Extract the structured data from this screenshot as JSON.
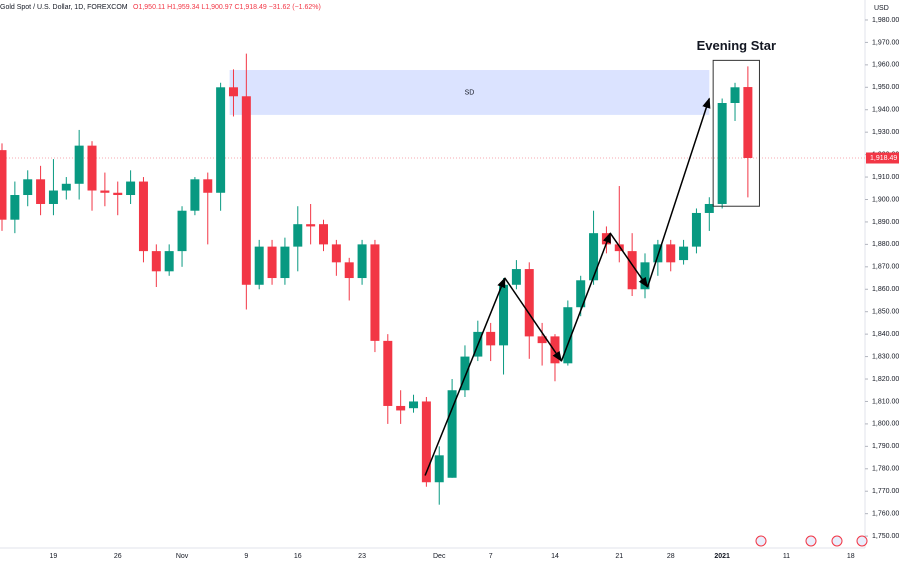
{
  "chart_data": {
    "type": "candlestick",
    "legend_text": "Gold Spot / U.S. Dollar, 1D, FOREXCOM",
    "ohlc_text": "O1,950.11 H1,959.34 L1,900.97 C1,918.49 −31.62 (−1.62%)",
    "currency": "USD",
    "price_label": "1,918.49",
    "up_color": "#089981",
    "down_color": "#f23645",
    "categories": [
      null,
      null,
      null,
      null,
      "19",
      null,
      null,
      null,
      null,
      "26",
      null,
      null,
      null,
      null,
      "Nov",
      null,
      null,
      null,
      null,
      "9",
      null,
      null,
      null,
      "16",
      null,
      null,
      null,
      null,
      "23",
      null,
      null,
      null,
      null,
      null,
      "Dec",
      null,
      null,
      null,
      "7",
      null,
      null,
      null,
      null,
      "14",
      null,
      null,
      null,
      null,
      "21",
      null,
      null,
      null,
      "28",
      null,
      null,
      null,
      "2021",
      null,
      null,
      null,
      null,
      "11",
      null,
      null,
      null,
      null,
      "18"
    ],
    "open": [
      1922,
      1891,
      1902,
      1909,
      1898,
      1904,
      1907,
      1924,
      1904,
      1903,
      1902,
      1908,
      1877,
      1868,
      1877,
      1895,
      1909,
      1903,
      1950,
      1946,
      1862,
      1879,
      1865,
      1879,
      1889,
      1889,
      1880,
      1872,
      1865,
      1880,
      1837,
      1808,
      1807,
      1810,
      1774,
      1776,
      1815,
      1830,
      1841,
      1835,
      1862,
      1869,
      1839,
      1839,
      1827,
      1852,
      1864,
      1885,
      1880,
      1877,
      1860,
      1872,
      1880,
      1873,
      1879,
      1894,
      1898,
      1943,
      1950.11,
      null,
      null,
      null,
      null,
      null,
      null,
      null,
      null
    ],
    "high": [
      1925,
      1908,
      1913,
      1915,
      1918,
      1910,
      1931,
      1926,
      1912,
      1908,
      1913,
      1910,
      1880,
      1880,
      1897,
      1910,
      1912,
      1952,
      1958,
      1965,
      1882,
      1882,
      1883,
      1897,
      1898,
      1891,
      1882,
      1874,
      1882,
      1882,
      1840,
      1815,
      1813,
      1812,
      1790,
      1820,
      1835,
      1846,
      1845,
      1865,
      1873,
      1872,
      1845,
      1840,
      1855,
      1866,
      1895,
      1888,
      1906,
      1885,
      1876,
      1882,
      1882,
      1882,
      1896,
      1901,
      1945,
      1952,
      1959.34,
      null,
      null,
      null,
      null,
      null,
      null,
      null,
      null
    ],
    "low": [
      1886,
      1885,
      1897,
      1893,
      1893,
      1900,
      1900,
      1895,
      1897,
      1893,
      1898,
      1872,
      1861,
      1866,
      1870,
      1893,
      1880,
      1895,
      1937,
      1851,
      1860,
      1862,
      1862,
      1868,
      1880,
      1877,
      1866,
      1855,
      1862,
      1832,
      1800,
      1800,
      1805,
      1772,
      1764,
      1776,
      1812,
      1828,
      1828,
      1822,
      1860,
      1829,
      1826,
      1819,
      1826,
      1848,
      1862,
      1876,
      1872,
      1857,
      1856,
      1866,
      1868,
      1871,
      1876,
      1886,
      1896,
      1935,
      1900.97,
      null,
      null,
      null,
      null,
      null,
      null,
      null,
      null
    ],
    "close": [
      1891,
      1902,
      1909,
      1898,
      1904,
      1907,
      1924,
      1904,
      1903,
      1902,
      1908,
      1877,
      1868,
      1877,
      1895,
      1909,
      1903,
      1950,
      1946,
      1862,
      1879,
      1865,
      1879,
      1889,
      1888,
      1880,
      1872,
      1865,
      1880,
      1837,
      1808,
      1806,
      1810,
      1774,
      1786,
      1815,
      1830,
      1841,
      1835,
      1862,
      1869,
      1839,
      1836,
      1827,
      1852,
      1864,
      1885,
      1880,
      1877,
      1860,
      1872,
      1880,
      1872,
      1879,
      1894,
      1898,
      1943,
      1950,
      1918.49,
      null,
      null,
      null,
      null,
      null,
      null,
      null,
      null
    ],
    "ylim": [
      1744.7,
      1988.9
    ],
    "yticks": [
      {
        "value": 1750,
        "label": "1,750.00"
      },
      {
        "value": 1760,
        "label": "1,760.00"
      },
      {
        "value": 1770,
        "label": "1,770.00"
      },
      {
        "value": 1780,
        "label": "1,780.00"
      },
      {
        "value": 1790,
        "label": "1,790.00"
      },
      {
        "value": 1800,
        "label": "1,800.00"
      },
      {
        "value": 1810,
        "label": "1,810.00"
      },
      {
        "value": 1820,
        "label": "1,820.00"
      },
      {
        "value": 1830,
        "label": "1,830.00"
      },
      {
        "value": 1840,
        "label": "1,840.00"
      },
      {
        "value": 1850,
        "label": "1,850.00"
      },
      {
        "value": 1860,
        "label": "1,860.00"
      },
      {
        "value": 1870,
        "label": "1,870.00"
      },
      {
        "value": 1880,
        "label": "1,880.00"
      },
      {
        "value": 1890,
        "label": "1,890.00"
      },
      {
        "value": 1900,
        "label": "1,900.00"
      },
      {
        "value": 1910,
        "label": "1,910.00"
      },
      {
        "value": 1920,
        "label": "1,920.00"
      },
      {
        "value": 1930,
        "label": "1,930.00"
      },
      {
        "value": 1940,
        "label": "1,940.00"
      },
      {
        "value": 1950,
        "label": "1,950.00"
      },
      {
        "value": 1960,
        "label": "1,960.00"
      },
      {
        "value": 1970,
        "label": "1,970.00"
      },
      {
        "value": 1980,
        "label": "1,980.00"
      }
    ],
    "zones": [
      {
        "label": "SD",
        "x": [
          17.7,
          55
        ],
        "y": [
          1937.7,
          1957.7
        ],
        "color": "#dbe3ff"
      }
    ],
    "boxes": [
      {
        "label": "Evening Star",
        "x": [
          55.3,
          58.9
        ],
        "y": [
          1897,
          1962
        ]
      }
    ],
    "trend_line": {
      "x": [
        32.9,
        39.1,
        43.5,
        47.3,
        50.2,
        55
      ],
      "y": [
        1777,
        1865,
        1828,
        1885,
        1861,
        1945
      ]
    }
  }
}
